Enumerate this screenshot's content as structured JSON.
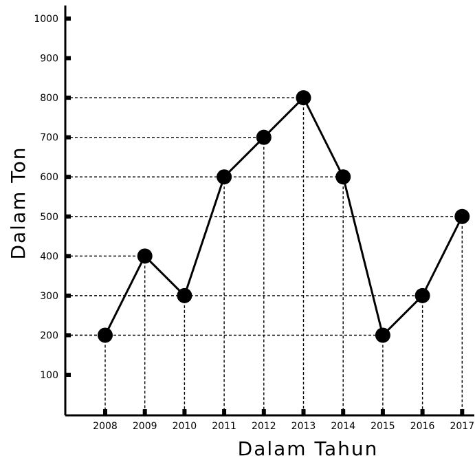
{
  "chart_data": {
    "type": "line",
    "title": "",
    "xlabel": "Dalam Tahun",
    "ylabel": "Dalam Ton",
    "categories": [
      "2008",
      "2009",
      "2010",
      "2011",
      "2012",
      "2013",
      "2014",
      "2015",
      "2016",
      "2017"
    ],
    "series": [
      {
        "values": [
          200,
          400,
          300,
          600,
          700,
          800,
          600,
          200,
          300,
          500
        ]
      }
    ],
    "ylim": [
      0,
      1000
    ],
    "yticks": [
      100,
      200,
      300,
      400,
      500,
      600,
      700,
      800,
      900,
      1000
    ],
    "ytick_labels": [
      "100",
      "200",
      "300",
      "400",
      "500",
      "600",
      "700",
      "800",
      "900",
      "1000"
    ],
    "grid": "dashed guide lines to each point",
    "legend": "none",
    "colors": {
      "line": "#000000",
      "marker": "#000000"
    }
  }
}
